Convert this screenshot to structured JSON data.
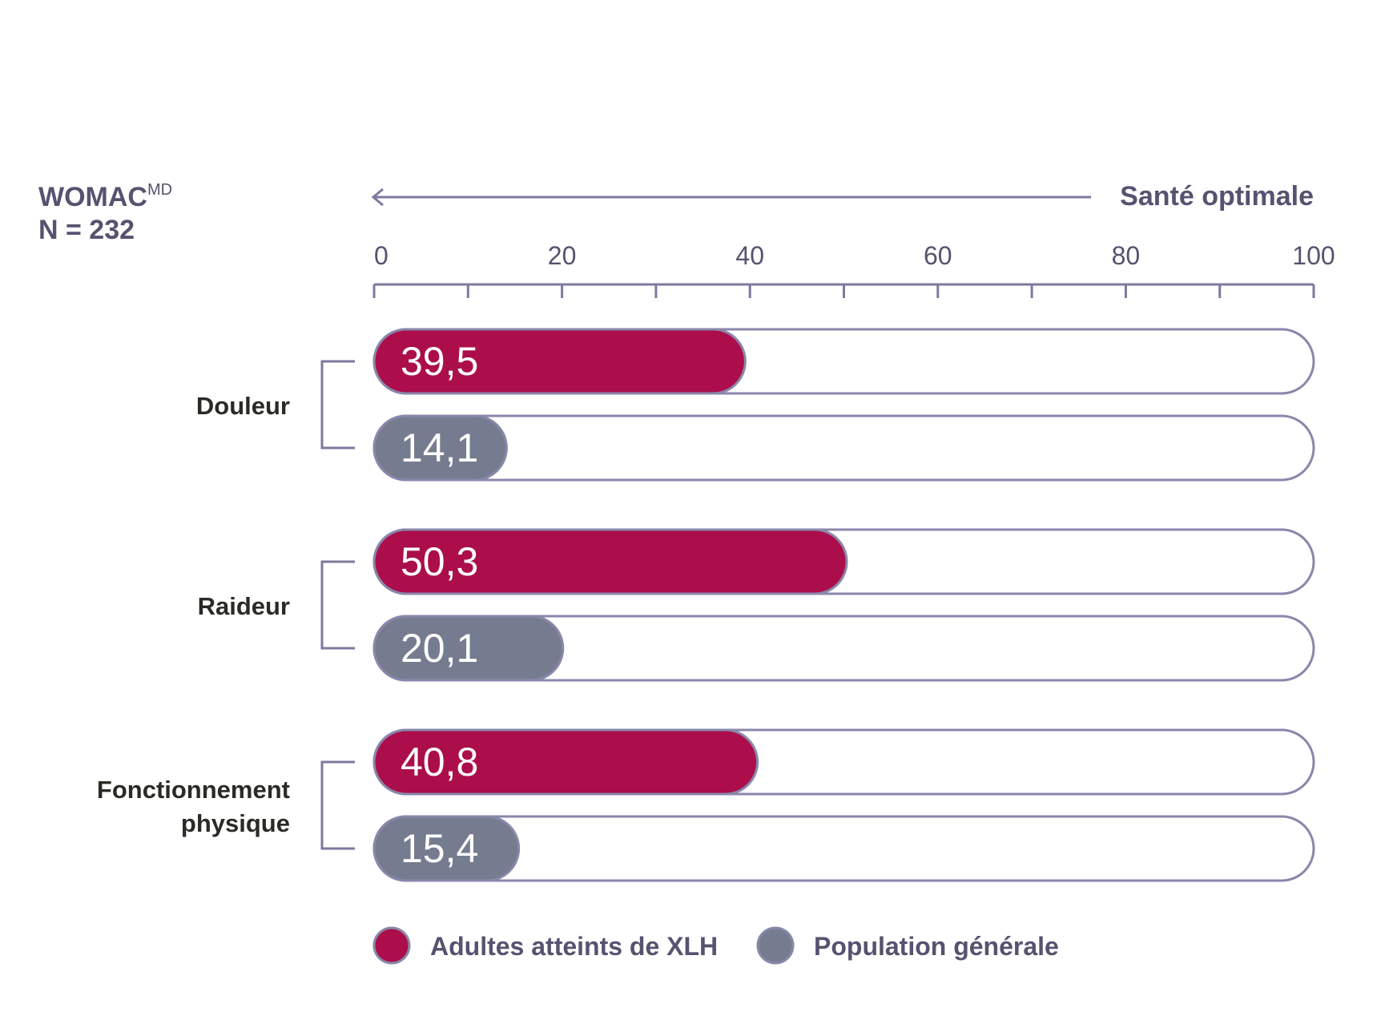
{
  "header": {
    "title": "WOMAC",
    "title_sup": "MD",
    "sample": "N = 232",
    "direction_label": "Santé optimale"
  },
  "chart_data": {
    "type": "bar",
    "orientation": "horizontal",
    "xlim": [
      0,
      100
    ],
    "x_ticks": [
      0,
      20,
      40,
      60,
      80,
      100
    ],
    "x_minor_step": 10,
    "axis_direction_note": "Santé optimale",
    "categories": [
      [
        "Douleur"
      ],
      [
        "Raideur"
      ],
      [
        "Fonctionnement",
        "physique"
      ]
    ],
    "series": [
      {
        "name": "Adultes atteints de XLH",
        "color": "#ab0e4a",
        "values": [
          39.5,
          50.3,
          40.8
        ],
        "labels": [
          "39,5",
          "50,3",
          "40,8"
        ]
      },
      {
        "name": "Population générale",
        "color": "#767c8f",
        "values": [
          14.1,
          20.1,
          15.4
        ],
        "labels": [
          "14,1",
          "20,1",
          "15,4"
        ]
      }
    ],
    "colors": {
      "axis": "#7d7a9e",
      "track_border": "#8a87ab",
      "text_muted": "#55536f",
      "text_dark": "#2b2b26"
    },
    "legend_position": "bottom-left"
  }
}
